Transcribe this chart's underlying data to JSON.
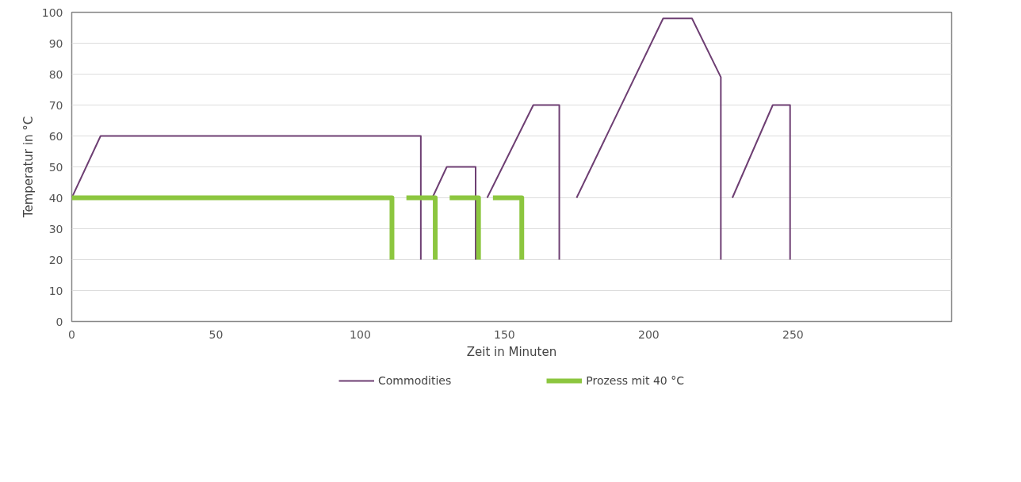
{
  "chart_data": {
    "type": "line",
    "xlabel": "Zeit in Minuten",
    "ylabel": "Temperatur in °C",
    "xlim": [
      0,
      305
    ],
    "xticks": [
      0,
      50,
      100,
      150,
      200,
      250
    ],
    "ylim": [
      0,
      100
    ],
    "yticks": [
      0,
      10,
      20,
      30,
      40,
      50,
      60,
      70,
      80,
      90,
      100
    ],
    "grid": "y",
    "legend": "bottom",
    "marker": "none",
    "line_style": "solid",
    "series": [
      {
        "name": "Commodities",
        "color": "#6e3f73",
        "x": [
          0,
          10,
          121,
          121,
          null,
          125,
          130,
          140,
          140,
          null,
          144,
          160,
          169,
          169,
          null,
          175,
          205,
          215,
          225,
          225,
          null,
          229,
          243,
          249,
          249
        ],
        "values": [
          40,
          60,
          60,
          20,
          null,
          40,
          50,
          50,
          20,
          null,
          40,
          70,
          70,
          20,
          null,
          40,
          98,
          98,
          79,
          20,
          null,
          40,
          70,
          70,
          20
        ]
      },
      {
        "name": "Prozess mit 40 °C",
        "color": "#8cc63f",
        "x": [
          0,
          111,
          111,
          null,
          116,
          126,
          126,
          null,
          131,
          141,
          141,
          null,
          146,
          156,
          156
        ],
        "values": [
          40,
          40,
          20,
          null,
          40,
          40,
          20,
          null,
          40,
          40,
          20,
          null,
          40,
          40,
          20
        ]
      }
    ]
  }
}
